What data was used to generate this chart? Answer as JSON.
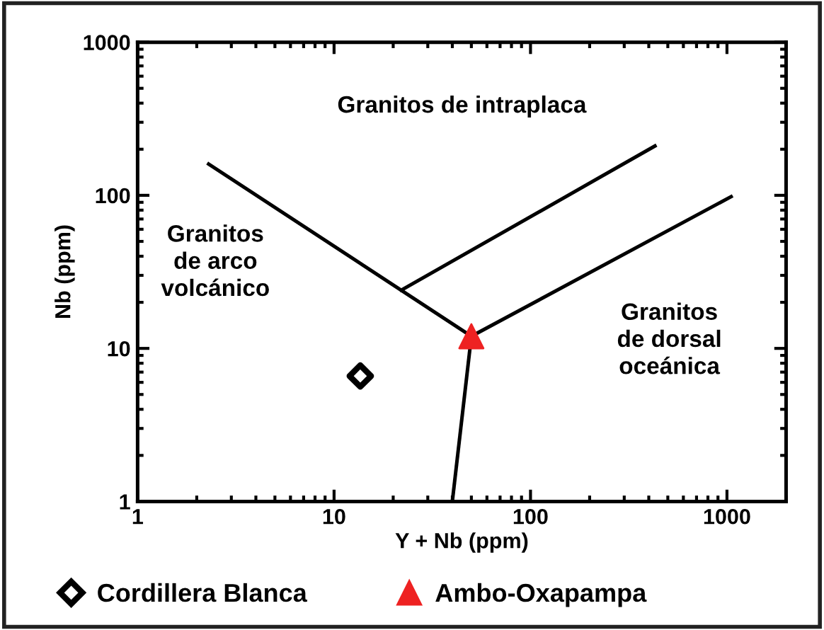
{
  "chart_data": {
    "type": "scatter",
    "xlabel": "Y + Nb (ppm)",
    "ylabel": "Nb (ppm)",
    "log": "xy",
    "xlim": [
      1,
      2000
    ],
    "ylim": [
      1,
      1000
    ],
    "xticks": [
      1,
      10,
      100,
      1000
    ],
    "yticks": [
      1,
      10,
      100,
      1000
    ],
    "grid": false,
    "legend": "bottom",
    "series": [
      {
        "type": "line",
        "x": [
          2.3,
          50
        ],
        "values": [
          160,
          12
        ],
        "color": "#000000",
        "marker": "none",
        "line_style": "solid"
      },
      {
        "type": "line",
        "x": [
          50,
          1050
        ],
        "values": [
          12,
          98
        ],
        "color": "#000000",
        "marker": "none",
        "line_style": "solid"
      },
      {
        "type": "line",
        "x": [
          50,
          40
        ],
        "values": [
          12,
          1
        ],
        "color": "#000000",
        "marker": "none",
        "line_style": "solid"
      },
      {
        "type": "line",
        "x": [
          22,
          430
        ],
        "values": [
          24,
          210
        ],
        "color": "#000000",
        "marker": "none",
        "line_style": "solid"
      },
      {
        "name": "Cordillera Blanca",
        "x": [
          13.6
        ],
        "values": [
          6.6
        ],
        "color": "#000000",
        "marker": "diamond"
      },
      {
        "name": "Ambo-Oxapampa",
        "x": [
          50
        ],
        "values": [
          12
        ],
        "color": "#ee2222",
        "marker": "triangle"
      }
    ],
    "annotations": [
      "Granitos de intraplaca",
      "Granitos\nde arco\nvolcánico",
      "Granitos\nde dorsal\noceánica"
    ]
  }
}
